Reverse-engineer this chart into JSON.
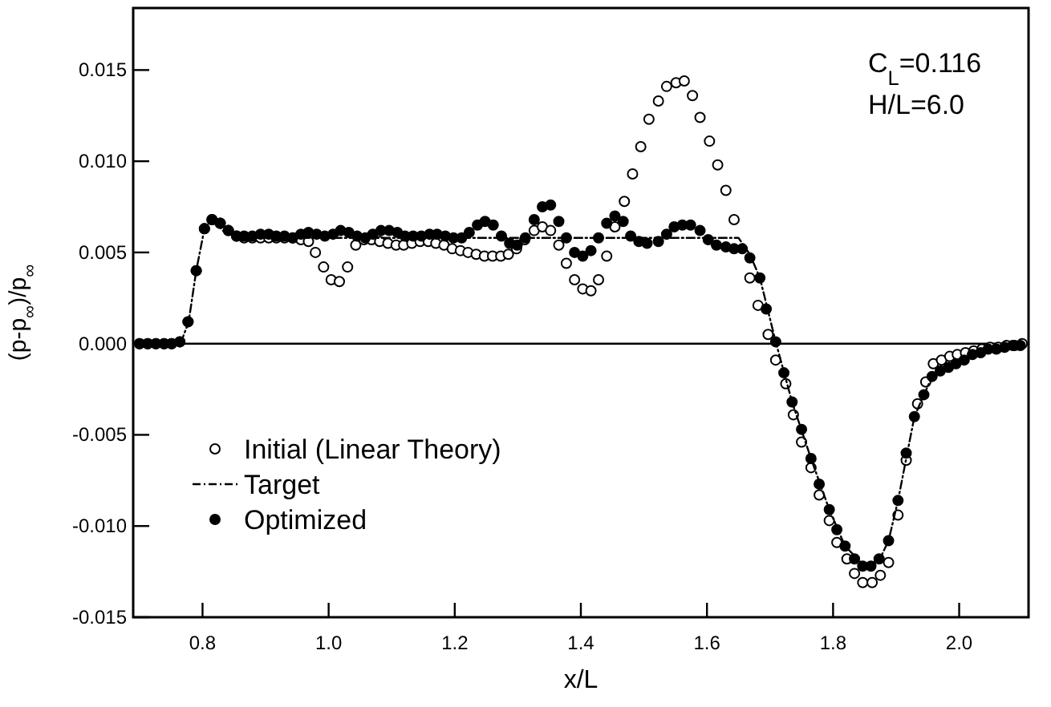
{
  "chart_data": {
    "type": "scatter",
    "xlabel": "x/L",
    "ylabel": "(p-p$_{∞}$)/p$_{∞}$",
    "xlim": [
      0.69,
      2.11
    ],
    "ylim": [
      -0.015,
      0.0184
    ],
    "xticks": [
      0.8,
      {
        "value": 1,
        "label": "1.0"
      },
      1.2,
      1.4,
      1.6,
      1.8,
      {
        "value": 2,
        "label": "2.0"
      }
    ],
    "yticks": [
      {
        "value": -0.015,
        "label": "-0.015"
      },
      {
        "value": -0.01,
        "label": "-0.010"
      },
      {
        "value": -0.005,
        "label": "-0.005"
      },
      {
        "value": 0,
        "label": "0.000"
      },
      {
        "value": 0.005,
        "label": "0.005"
      },
      {
        "value": 0.01,
        "label": "0.010"
      },
      {
        "value": 0.015,
        "label": "0.015"
      }
    ],
    "grid": false,
    "legend": "bottom left",
    "marker": "circle",
    "ref_lines": [
      {
        "axis": "y",
        "value": 0,
        "color": "#000000",
        "line_style": "solid"
      }
    ],
    "annotations": [
      "C$_{L}$=0.116",
      "H/L=6.0"
    ],
    "series": [
      {
        "name": "Initial (Linear Theory)",
        "color": "#ffffff",
        "x": [
          0.7,
          0.713,
          0.726,
          0.739,
          0.751,
          0.764,
          0.777,
          0.79,
          0.803,
          0.815,
          0.828,
          0.841,
          0.854,
          0.866,
          0.879,
          0.892,
          0.905,
          0.917,
          0.93,
          0.943,
          0.956,
          0.968,
          0.979,
          0.992,
          1.004,
          1.017,
          1.03,
          1.043,
          1.056,
          1.068,
          1.081,
          1.094,
          1.107,
          1.119,
          1.132,
          1.145,
          1.158,
          1.17,
          1.183,
          1.196,
          1.209,
          1.221,
          1.234,
          1.247,
          1.26,
          1.273,
          1.285,
          1.298,
          1.311,
          1.326,
          1.339,
          1.352,
          1.365,
          1.377,
          1.39,
          1.403,
          1.416,
          1.428,
          1.441,
          1.454,
          1.469,
          1.482,
          1.495,
          1.508,
          1.523,
          1.536,
          1.551,
          1.564,
          1.577,
          1.589,
          1.604,
          1.617,
          1.63,
          1.643,
          1.668,
          1.681,
          1.697,
          1.709,
          1.725,
          1.737,
          1.75,
          1.765,
          1.778,
          1.794,
          1.806,
          1.822,
          1.834,
          1.847,
          1.862,
          1.875,
          1.888,
          1.903,
          1.916,
          1.934,
          1.947,
          1.959,
          1.972,
          1.985,
          1.997,
          2.01,
          2.023,
          2.036,
          2.049,
          2.062,
          2.075,
          2.088,
          2.1
        ],
        "values": [
          0,
          0,
          0,
          0,
          0,
          0.0001,
          0.0012,
          0.004,
          0.0063,
          0.0068,
          0.0066,
          0.0062,
          0.0059,
          0.0058,
          0.0058,
          0.0058,
          0.0058,
          0.0058,
          0.0058,
          0.0058,
          0.0057,
          0.0056,
          0.005,
          0.0042,
          0.0035,
          0.0034,
          0.0042,
          0.0054,
          0.0057,
          0.0057,
          0.0056,
          0.0055,
          0.0054,
          0.0054,
          0.0055,
          0.0056,
          0.0056,
          0.0055,
          0.0054,
          0.0052,
          0.0051,
          0.005,
          0.0049,
          0.0048,
          0.0048,
          0.0048,
          0.0049,
          0.0052,
          0.0057,
          0.0062,
          0.0064,
          0.0062,
          0.0054,
          0.0044,
          0.0035,
          0.003,
          0.0029,
          0.0035,
          0.0048,
          0.0064,
          0.0078,
          0.0093,
          0.0108,
          0.0123,
          0.0133,
          0.0141,
          0.0143,
          0.0144,
          0.0136,
          0.0124,
          0.0111,
          0.0098,
          0.0084,
          0.0068,
          0.0036,
          0.0021,
          0.0005,
          -0.0009,
          -0.0022,
          -0.0039,
          -0.0054,
          -0.0068,
          -0.0083,
          -0.0097,
          -0.0109,
          -0.0118,
          -0.0126,
          -0.0131,
          -0.0131,
          -0.0127,
          -0.012,
          -0.0094,
          -0.0064,
          -0.0033,
          -0.0021,
          -0.0011,
          -0.0009,
          -0.0007,
          -0.0006,
          -0.0005,
          -0.0004,
          -0.0003,
          -0.0002,
          -0.0002,
          -0.0001,
          -0.0001,
          0
        ]
      },
      {
        "name": "Target",
        "type": "line",
        "color": "#000000",
        "marker": "none",
        "line_style": "dashed",
        "x": [
          0.69,
          0.765,
          0.778,
          0.79,
          0.803,
          0.815,
          0.835,
          0.86,
          1.65,
          1.668,
          1.684,
          1.709,
          1.735,
          1.765,
          1.794,
          1.819,
          1.847,
          1.873,
          1.888,
          1.903,
          1.929,
          1.957,
          1.995,
          2.046,
          2.1
        ],
        "values": [
          0,
          0,
          0.0012,
          0.004,
          0.0063,
          0.0068,
          0.0061,
          0.0058,
          0.0058,
          0.0049,
          0.0036,
          0.0001,
          -0.0032,
          -0.0063,
          -0.0091,
          -0.0111,
          -0.0121,
          -0.0119,
          -0.0108,
          -0.0086,
          -0.004,
          -0.0018,
          -0.0011,
          -0.0003,
          0
        ]
      },
      {
        "name": "Optimized",
        "color": "#000000",
        "x": [
          0.7,
          0.713,
          0.726,
          0.739,
          0.751,
          0.764,
          0.777,
          0.79,
          0.803,
          0.815,
          0.828,
          0.841,
          0.854,
          0.866,
          0.879,
          0.892,
          0.905,
          0.917,
          0.93,
          0.943,
          0.956,
          0.968,
          0.981,
          0.994,
          1.007,
          1.019,
          1.032,
          1.045,
          1.058,
          1.07,
          1.083,
          1.096,
          1.109,
          1.121,
          1.134,
          1.147,
          1.16,
          1.172,
          1.185,
          1.198,
          1.211,
          1.223,
          1.236,
          1.248,
          1.261,
          1.274,
          1.287,
          1.299,
          1.312,
          1.326,
          1.339,
          1.352,
          1.365,
          1.377,
          1.39,
          1.403,
          1.416,
          1.428,
          1.441,
          1.454,
          1.467,
          1.479,
          1.492,
          1.505,
          1.523,
          1.536,
          1.548,
          1.561,
          1.574,
          1.589,
          1.602,
          1.615,
          1.63,
          1.643,
          1.656,
          1.668,
          1.684,
          1.694,
          1.709,
          1.722,
          1.735,
          1.75,
          1.765,
          1.778,
          1.794,
          1.806,
          1.819,
          1.834,
          1.847,
          1.86,
          1.873,
          1.888,
          1.903,
          1.916,
          1.929,
          1.944,
          1.957,
          1.97,
          1.983,
          1.995,
          2.008,
          2.021,
          2.034,
          2.046,
          2.059,
          2.072,
          2.085,
          2.097
        ],
        "values": [
          0,
          0,
          0,
          0,
          0,
          0.0001,
          0.0012,
          0.004,
          0.0063,
          0.0068,
          0.0066,
          0.0062,
          0.0059,
          0.0059,
          0.0059,
          0.006,
          0.006,
          0.0059,
          0.0059,
          0.0058,
          0.006,
          0.0061,
          0.006,
          0.0059,
          0.006,
          0.0062,
          0.0061,
          0.0059,
          0.0058,
          0.006,
          0.0062,
          0.0062,
          0.0061,
          0.0059,
          0.0059,
          0.0059,
          0.006,
          0.006,
          0.0059,
          0.0058,
          0.0058,
          0.0061,
          0.0065,
          0.0067,
          0.0065,
          0.0059,
          0.0055,
          0.0054,
          0.0058,
          0.0068,
          0.0075,
          0.0076,
          0.0067,
          0.0058,
          0.005,
          0.0048,
          0.0051,
          0.0058,
          0.0066,
          0.007,
          0.0067,
          0.0059,
          0.0056,
          0.0055,
          0.0056,
          0.006,
          0.0064,
          0.0065,
          0.0065,
          0.0062,
          0.0057,
          0.0054,
          0.0053,
          0.0052,
          0.0052,
          0.0047,
          0.0036,
          0.0019,
          0.0001,
          -0.0016,
          -0.0032,
          -0.0047,
          -0.0063,
          -0.0077,
          -0.0091,
          -0.0102,
          -0.0111,
          -0.0118,
          -0.0122,
          -0.0122,
          -0.0118,
          -0.0108,
          -0.0086,
          -0.006,
          -0.004,
          -0.0028,
          -0.0018,
          -0.0015,
          -0.0013,
          -0.0011,
          -0.0009,
          -0.0006,
          -0.0005,
          -0.0003,
          -0.0003,
          -0.0002,
          -0.0001,
          -0.0001
        ]
      }
    ]
  }
}
